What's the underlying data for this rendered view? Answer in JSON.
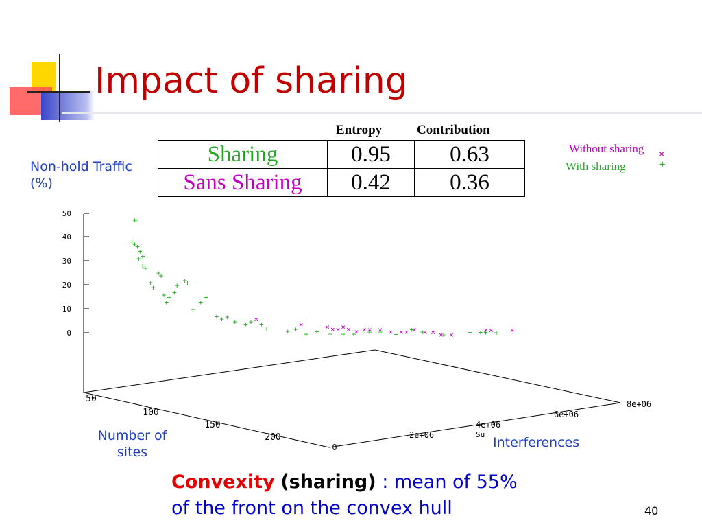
{
  "slide": {
    "title": "Impact of sharing",
    "page_number": "40",
    "footer": {
      "convexity": "Convexity",
      "sharing": "(sharing)",
      "rest_line1": ": mean of 55%",
      "line2": "of the front on the convex hull"
    },
    "colors": {
      "title": "#c00000",
      "axis_note": "#1f3fbf",
      "sharing": "#22aa22",
      "sans_sharing": "#c000c0",
      "accent_yellow": "#ffd700",
      "accent_red": "#ff5a5a",
      "accent_blue": "#3a46c8"
    }
  },
  "table": {
    "headers": [
      "Entropy",
      "Contribution"
    ],
    "rows": [
      {
        "label": "Sharing",
        "entropy": "0.95",
        "contribution": "0.63"
      },
      {
        "label": "Sans Sharing",
        "entropy": "0.42",
        "contribution": "0.36"
      }
    ]
  },
  "chart_data": {
    "type": "scatter",
    "projection": "3d",
    "z_axis_label": "Non-hold Traffic (%)",
    "x_axis_label": "Interferences",
    "y_axis_label": "Number of sites",
    "z_ticks": [
      "0",
      "10",
      "20",
      "30",
      "40",
      "50"
    ],
    "x_ticks": [
      "0",
      "2e+06",
      "4e+06",
      "6e+06",
      "8e+06"
    ],
    "y_ticks": [
      "50",
      "100",
      "150",
      "200"
    ],
    "x_axis_partial_label": "Su",
    "legend": [
      {
        "name": "Without sharing",
        "marker": "x",
        "color": "#c000c0"
      },
      {
        "name": "With sharing",
        "marker": "+",
        "color": "#22aa22"
      }
    ],
    "series": [
      {
        "name": "With sharing",
        "marker": "+",
        "color": "#22aa22",
        "points": [
          [
            0.3,
            70,
            47
          ],
          [
            0.35,
            70,
            47
          ],
          [
            0.2,
            90,
            38
          ],
          [
            0.3,
            90,
            37
          ],
          [
            0.4,
            90,
            36
          ],
          [
            0.5,
            90,
            34
          ],
          [
            0.45,
            90,
            31
          ],
          [
            0.6,
            100,
            32
          ],
          [
            0.6,
            100,
            28
          ],
          [
            0.7,
            100,
            27
          ],
          [
            0.9,
            110,
            21
          ],
          [
            1.0,
            110,
            19
          ],
          [
            1.2,
            100,
            25
          ],
          [
            1.3,
            100,
            24
          ],
          [
            1.4,
            100,
            16
          ],
          [
            1.5,
            110,
            13
          ],
          [
            1.6,
            110,
            15
          ],
          [
            1.8,
            110,
            17
          ],
          [
            1.9,
            110,
            20
          ],
          [
            2.2,
            100,
            22
          ],
          [
            2.3,
            100,
            21
          ],
          [
            2.5,
            110,
            10
          ],
          [
            2.8,
            110,
            13
          ],
          [
            3.0,
            110,
            15
          ],
          [
            3.4,
            110,
            7
          ],
          [
            3.6,
            110,
            6
          ],
          [
            3.8,
            110,
            7
          ],
          [
            4.1,
            110,
            5
          ],
          [
            4.5,
            110,
            4
          ],
          [
            4.7,
            110,
            5
          ],
          [
            5.1,
            110,
            4
          ],
          [
            5.3,
            110,
            2
          ],
          [
            6.1,
            110,
            1
          ],
          [
            6.4,
            110,
            2
          ],
          [
            6.8,
            110,
            0
          ],
          [
            7.2,
            110,
            1
          ],
          [
            7.7,
            110,
            0
          ],
          [
            8.2,
            110,
            0
          ],
          [
            8.6,
            110,
            0
          ],
          [
            9.2,
            110,
            1
          ],
          [
            9.6,
            110,
            1
          ],
          [
            10.2,
            110,
            0
          ],
          [
            10.8,
            110,
            2
          ],
          [
            11.2,
            110,
            1
          ],
          [
            12.0,
            110,
            0
          ],
          [
            13.0,
            110,
            1
          ],
          [
            13.4,
            110,
            1
          ],
          [
            13.6,
            110,
            1
          ],
          [
            14.0,
            110,
            1
          ]
        ]
      },
      {
        "name": "Without sharing",
        "marker": "x",
        "color": "#c000c0",
        "points": [
          [
            4.9,
            110,
            6
          ],
          [
            6.6,
            110,
            4
          ],
          [
            7.6,
            110,
            3
          ],
          [
            7.8,
            110,
            2
          ],
          [
            8.0,
            110,
            2
          ],
          [
            8.2,
            110,
            3
          ],
          [
            8.4,
            110,
            2
          ],
          [
            8.7,
            110,
            1
          ],
          [
            9.0,
            110,
            2
          ],
          [
            9.2,
            110,
            2
          ],
          [
            9.6,
            110,
            2
          ],
          [
            10.0,
            110,
            1
          ],
          [
            10.4,
            110,
            1
          ],
          [
            10.6,
            110,
            1
          ],
          [
            10.9,
            110,
            2
          ],
          [
            11.3,
            110,
            1
          ],
          [
            11.6,
            110,
            1
          ],
          [
            11.9,
            110,
            0
          ],
          [
            12.3,
            110,
            0
          ],
          [
            13.6,
            110,
            2
          ],
          [
            13.8,
            110,
            2
          ],
          [
            14.6,
            110,
            2
          ]
        ]
      }
    ]
  }
}
